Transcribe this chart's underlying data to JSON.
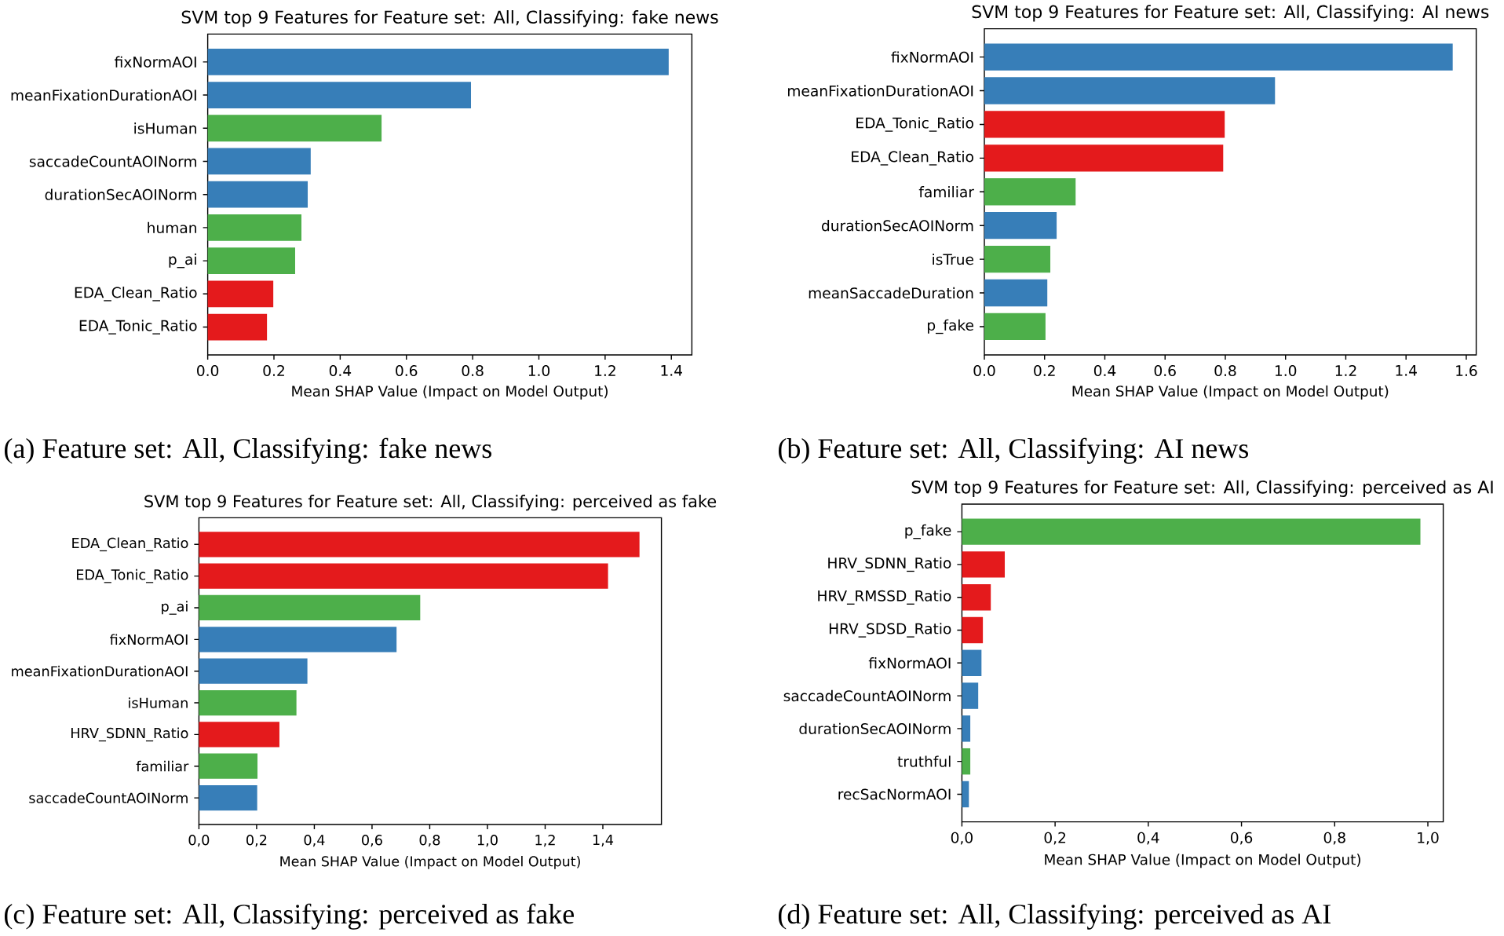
{
  "chart_data": [
    {
      "type": "bar",
      "orientation": "horizontal",
      "title": "SVM top 9 Features for Feature set: All, Classifying: fake news",
      "xlabel": "Mean SHAP Value (Impact on Model Output)",
      "categories": [
        "fixNormAOI",
        "meanFixationDurationAOI",
        "isHuman",
        "saccadeCountAOINorm",
        "durationSecAOINorm",
        "human",
        "p_ai",
        "EDA_Clean_Ratio",
        "EDA_Tonic_Ratio"
      ],
      "values": [
        1.392,
        0.795,
        0.525,
        0.311,
        0.302,
        0.283,
        0.264,
        0.198,
        0.179
      ],
      "colors": [
        "#377eb8",
        "#377eb8",
        "#4daf4a",
        "#377eb8",
        "#377eb8",
        "#4daf4a",
        "#4daf4a",
        "#e41a1c",
        "#e41a1c"
      ],
      "xlim": [
        0,
        1.462
      ],
      "xticks": [
        {
          "value": 0,
          "label": "0.0"
        },
        0.2,
        0.4,
        0.6,
        0.8,
        {
          "value": 1,
          "label": "1.0"
        },
        1.2,
        1.4
      ],
      "annotations": [
        "(a) Feature set: All, Classifying: fake news"
      ]
    },
    {
      "type": "bar",
      "orientation": "horizontal",
      "title": "SVM top 9 Features for Feature set: All, Classifying: AI news",
      "xlabel": "Mean SHAP Value (Impact on Model Output)",
      "categories": [
        "fixNormAOI",
        "meanFixationDurationAOI",
        "EDA_Tonic_Ratio",
        "EDA_Clean_Ratio",
        "familiar",
        "durationSecAOINorm",
        "isTrue",
        "meanSaccadeDuration",
        "p_fake"
      ],
      "values": [
        1.555,
        0.965,
        0.798,
        0.793,
        0.303,
        0.24,
        0.219,
        0.209,
        0.203
      ],
      "colors": [
        "#377eb8",
        "#377eb8",
        "#e41a1c",
        "#e41a1c",
        "#4daf4a",
        "#377eb8",
        "#4daf4a",
        "#377eb8",
        "#4daf4a"
      ],
      "xlim": [
        0,
        1.633
      ],
      "xticks": [
        {
          "value": 0,
          "label": "0.0"
        },
        0.2,
        0.4,
        0.6,
        0.8,
        {
          "value": 1,
          "label": "1.0"
        },
        1.2,
        1.4,
        1.6
      ],
      "annotations": [
        "(b) Feature set: All, Classifying: AI news"
      ]
    },
    {
      "type": "bar",
      "orientation": "horizontal",
      "title": "SVM top 9 Features for Feature set: All, Classifying: perceived as fake",
      "xlabel": "Mean SHAP Value (Impact on Model Output)",
      "categories": [
        "EDA_Clean_Ratio",
        "EDA_Tonic_Ratio",
        "p_ai",
        "fixNormAOI",
        "meanFixationDurationAOI",
        "isHuman",
        "HRV_SDNN_Ratio",
        "familiar",
        "saccadeCountAOINorm"
      ],
      "values": [
        1.527,
        1.418,
        0.767,
        0.685,
        0.376,
        0.338,
        0.279,
        0.203,
        0.202
      ],
      "colors": [
        "#e41a1c",
        "#e41a1c",
        "#4daf4a",
        "#377eb8",
        "#377eb8",
        "#4daf4a",
        "#e41a1c",
        "#4daf4a",
        "#377eb8"
      ],
      "xlim": [
        0,
        1.603
      ],
      "xticks": [
        {
          "value": 0,
          "label": "0,0"
        },
        {
          "value": 0.2,
          "label": "0,2"
        },
        {
          "value": 0.4,
          "label": "0,4"
        },
        {
          "value": 0.6,
          "label": "0,6"
        },
        {
          "value": 0.8,
          "label": "0,8"
        },
        {
          "value": 1,
          "label": "1,0"
        },
        {
          "value": 1.2,
          "label": "1,2"
        },
        {
          "value": 1.4,
          "label": "1,4"
        }
      ],
      "annotations": [
        "(c) Feature set: All, Classifying: perceived as fake"
      ]
    },
    {
      "type": "bar",
      "orientation": "horizontal",
      "title": "SVM top 9 Features for Feature set: All, Classifying: perceived as AI",
      "xlabel": "Mean SHAP Value (Impact on Model Output)",
      "categories": [
        "p_fake",
        "HRV_SDNN_Ratio",
        "HRV_RMSSD_Ratio",
        "HRV_SDSD_Ratio",
        "fixNormAOI",
        "saccadeCountAOINorm",
        "durationSecAOINorm",
        "truthful",
        "recSacNormAOI"
      ],
      "values": [
        0.984,
        0.092,
        0.062,
        0.045,
        0.042,
        0.035,
        0.018,
        0.018,
        0.015
      ],
      "colors": [
        "#4daf4a",
        "#e41a1c",
        "#e41a1c",
        "#e41a1c",
        "#377eb8",
        "#377eb8",
        "#377eb8",
        "#4daf4a",
        "#377eb8"
      ],
      "xlim": [
        0,
        1.033
      ],
      "xticks": [
        {
          "value": 0,
          "label": "0,0"
        },
        {
          "value": 0.2,
          "label": "0,2"
        },
        {
          "value": 0.4,
          "label": "0,4"
        },
        {
          "value": 0.6,
          "label": "0,6"
        },
        {
          "value": 0.8,
          "label": "0,8"
        },
        {
          "value": 1,
          "label": "1,0"
        }
      ],
      "annotations": [
        "(d) Feature set: All, Classifying: perceived as AI"
      ]
    }
  ]
}
